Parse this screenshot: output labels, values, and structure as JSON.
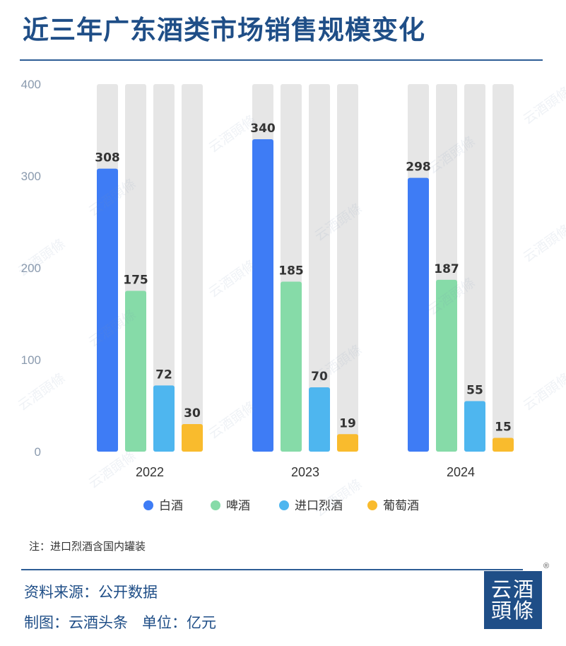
{
  "header": {
    "title": "近三年广东酒类市场销售规模变化"
  },
  "chart_data": {
    "type": "bar",
    "title": "近三年广东酒类市场销售规模变化",
    "categories": [
      "2022",
      "2023",
      "2024"
    ],
    "series": [
      {
        "name": "白酒",
        "color": "#3e7cf5",
        "values": [
          308,
          340,
          298
        ]
      },
      {
        "name": "啤酒",
        "color": "#86dba8",
        "values": [
          175,
          185,
          187
        ]
      },
      {
        "name": "进口烈酒",
        "color": "#4eb6ef",
        "values": [
          72,
          70,
          55
        ]
      },
      {
        "name": "葡萄酒",
        "color": "#f9bb2d",
        "values": [
          30,
          19,
          15
        ]
      }
    ],
    "ylim": [
      0,
      400
    ],
    "yticks": [
      0,
      100,
      200,
      300,
      400
    ],
    "grid": false,
    "legend_position": "bottom",
    "background_track_color": "#e6e6e6",
    "axis_text_color": "#8a9aae"
  },
  "note": "注：进口烈酒含国内罐装",
  "footer": {
    "source": "资料来源：公开数据",
    "maker": "制图：云酒头条",
    "unit": "单位：亿元"
  },
  "logo": {
    "line1": "云酒",
    "line2": "頭條",
    "mark": "®"
  },
  "watermark_text": "云酒頭條"
}
